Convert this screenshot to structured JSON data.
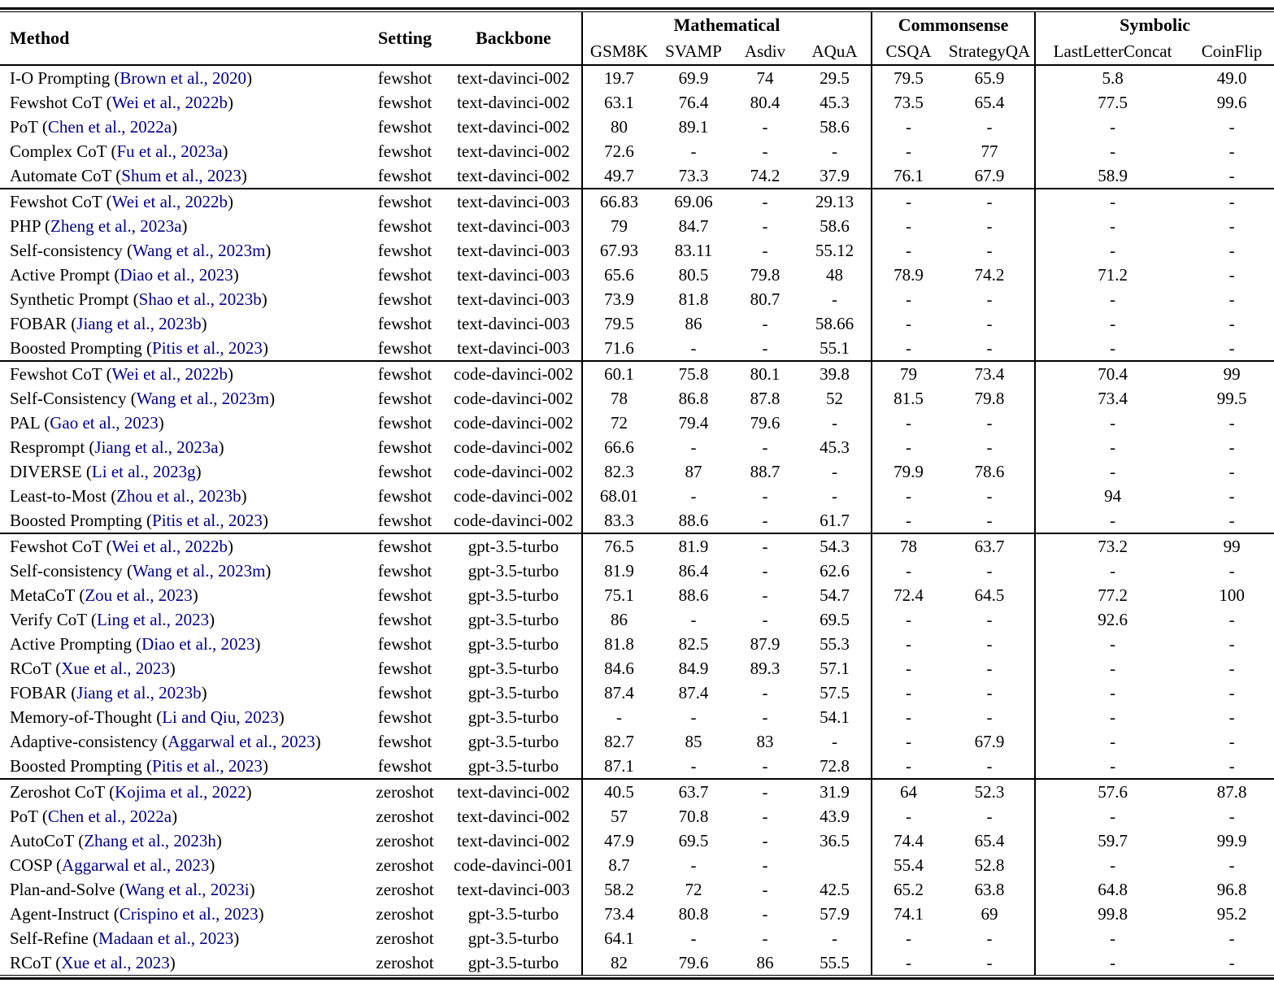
{
  "table": {
    "header": {
      "method": "Method",
      "setting": "Setting",
      "backbone": "Backbone",
      "groups": [
        {
          "label": "Mathematical",
          "columns": [
            "GSM8K",
            "SVAMP",
            "Asdiv",
            "AQuA"
          ]
        },
        {
          "label": "Commonsense",
          "columns": [
            "CSQA",
            "StrategyQA"
          ]
        },
        {
          "label": "Symbolic",
          "columns": [
            "LastLetterConcat",
            "CoinFlip"
          ]
        }
      ]
    },
    "colors": {
      "citation_link": "#00008B",
      "text": "#000000",
      "background": "#ffffff",
      "rules": "#000000"
    },
    "body_groups": [
      {
        "rows": [
          {
            "method": "I-O Prompting",
            "citation": "Brown et al., 2020",
            "setting": "fewshot",
            "backbone": "text-davinci-002",
            "scores": [
              "19.7",
              "69.9",
              "74",
              "29.5",
              "79.5",
              "65.9",
              "5.8",
              "49.0"
            ]
          },
          {
            "method": "Fewshot CoT",
            "citation": "Wei et al., 2022b",
            "setting": "fewshot",
            "backbone": "text-davinci-002",
            "scores": [
              "63.1",
              "76.4",
              "80.4",
              "45.3",
              "73.5",
              "65.4",
              "77.5",
              "99.6"
            ]
          },
          {
            "method": "PoT",
            "citation": "Chen et al., 2022a",
            "setting": "fewshot",
            "backbone": "text-davinci-002",
            "scores": [
              "80",
              "89.1",
              "-",
              "58.6",
              "-",
              "-",
              "-",
              "-"
            ]
          },
          {
            "method": "Complex CoT",
            "citation": "Fu et al., 2023a",
            "setting": "fewshot",
            "backbone": "text-davinci-002",
            "scores": [
              "72.6",
              "-",
              "-",
              "-",
              "-",
              "77",
              "-",
              "-"
            ]
          },
          {
            "method": "Automate CoT",
            "citation": "Shum et al., 2023",
            "setting": "fewshot",
            "backbone": "text-davinci-002",
            "scores": [
              "49.7",
              "73.3",
              "74.2",
              "37.9",
              "76.1",
              "67.9",
              "58.9",
              "-"
            ]
          }
        ]
      },
      {
        "rows": [
          {
            "method": "Fewshot CoT",
            "citation": "Wei et al., 2022b",
            "setting": "fewshot",
            "backbone": "text-davinci-003",
            "scores": [
              "66.83",
              "69.06",
              "-",
              "29.13",
              "-",
              "-",
              "-",
              "-"
            ]
          },
          {
            "method": "PHP",
            "citation": "Zheng et al., 2023a",
            "setting": "fewshot",
            "backbone": "text-davinci-003",
            "scores": [
              "79",
              "84.7",
              "-",
              "58.6",
              "-",
              "-",
              "-",
              "-"
            ]
          },
          {
            "method": "Self-consistency",
            "citation": "Wang et al., 2023m",
            "setting": "fewshot",
            "backbone": "text-davinci-003",
            "scores": [
              "67.93",
              "83.11",
              "-",
              "55.12",
              "-",
              "-",
              "-",
              "-"
            ]
          },
          {
            "method": "Active Prompt",
            "citation": "Diao et al., 2023",
            "setting": "fewshot",
            "backbone": "text-davinci-003",
            "scores": [
              "65.6",
              "80.5",
              "79.8",
              "48",
              "78.9",
              "74.2",
              "71.2",
              "-"
            ]
          },
          {
            "method": "Synthetic Prompt",
            "citation": "Shao et al., 2023b",
            "setting": "fewshot",
            "backbone": "text-davinci-003",
            "scores": [
              "73.9",
              "81.8",
              "80.7",
              "-",
              "-",
              "-",
              "-",
              "-"
            ]
          },
          {
            "method": "FOBAR",
            "citation": "Jiang et al., 2023b",
            "setting": "fewshot",
            "backbone": "text-davinci-003",
            "scores": [
              "79.5",
              "86",
              "-",
              "58.66",
              "-",
              "-",
              "-",
              "-"
            ]
          },
          {
            "method": "Boosted Prompting",
            "citation": "Pitis et al., 2023",
            "setting": "fewshot",
            "backbone": "text-davinci-003",
            "scores": [
              "71.6",
              "-",
              "-",
              "55.1",
              "-",
              "-",
              "-",
              "-"
            ]
          }
        ]
      },
      {
        "rows": [
          {
            "method": "Fewshot CoT",
            "citation": "Wei et al., 2022b",
            "setting": "fewshot",
            "backbone": "code-davinci-002",
            "scores": [
              "60.1",
              "75.8",
              "80.1",
              "39.8",
              "79",
              "73.4",
              "70.4",
              "99"
            ]
          },
          {
            "method": "Self-Consistency",
            "citation": "Wang et al., 2023m",
            "setting": "fewshot",
            "backbone": "code-davinci-002",
            "scores": [
              "78",
              "86.8",
              "87.8",
              "52",
              "81.5",
              "79.8",
              "73.4",
              "99.5"
            ]
          },
          {
            "method": "PAL",
            "citation": "Gao et al., 2023",
            "setting": "fewshot",
            "backbone": "code-davinci-002",
            "scores": [
              "72",
              "79.4",
              "79.6",
              "-",
              "-",
              "-",
              "-",
              "-"
            ]
          },
          {
            "method": "Resprompt",
            "citation": "Jiang et al., 2023a",
            "setting": "fewshot",
            "backbone": "code-davinci-002",
            "scores": [
              "66.6",
              "-",
              "-",
              "45.3",
              "-",
              "-",
              "-",
              "-"
            ]
          },
          {
            "method": "DIVERSE",
            "citation": "Li et al., 2023g",
            "setting": "fewshot",
            "backbone": "code-davinci-002",
            "scores": [
              "82.3",
              "87",
              "88.7",
              "-",
              "79.9",
              "78.6",
              "-",
              "-"
            ]
          },
          {
            "method": "Least-to-Most",
            "citation": "Zhou et al., 2023b",
            "setting": "fewshot",
            "backbone": "code-davinci-002",
            "scores": [
              "68.01",
              "-",
              "-",
              "-",
              "-",
              "-",
              "94",
              "-"
            ]
          },
          {
            "method": "Boosted Prompting",
            "citation": "Pitis et al., 2023",
            "setting": "fewshot",
            "backbone": "code-davinci-002",
            "scores": [
              "83.3",
              "88.6",
              "-",
              "61.7",
              "-",
              "-",
              "-",
              "-"
            ]
          }
        ]
      },
      {
        "rows": [
          {
            "method": "Fewshot CoT",
            "citation": "Wei et al., 2022b",
            "setting": "fewshot",
            "backbone": "gpt-3.5-turbo",
            "scores": [
              "76.5",
              "81.9",
              "-",
              "54.3",
              "78",
              "63.7",
              "73.2",
              "99"
            ]
          },
          {
            "method": "Self-consistency",
            "citation": "Wang et al., 2023m",
            "setting": "fewshot",
            "backbone": "gpt-3.5-turbo",
            "scores": [
              "81.9",
              "86.4",
              "-",
              "62.6",
              "-",
              "-",
              "-",
              "-"
            ]
          },
          {
            "method": "MetaCoT",
            "citation": "Zou et al., 2023",
            "setting": "fewshot",
            "backbone": "gpt-3.5-turbo",
            "scores": [
              "75.1",
              "88.6",
              "-",
              "54.7",
              "72.4",
              "64.5",
              "77.2",
              "100"
            ]
          },
          {
            "method": "Verify CoT",
            "citation": "Ling et al., 2023",
            "setting": "fewshot",
            "backbone": "gpt-3.5-turbo",
            "scores": [
              "86",
              "-",
              "-",
              "69.5",
              "-",
              "-",
              "92.6",
              "-"
            ]
          },
          {
            "method": "Active Prompting",
            "citation": "Diao et al., 2023",
            "setting": "fewshot",
            "backbone": "gpt-3.5-turbo",
            "scores": [
              "81.8",
              "82.5",
              "87.9",
              "55.3",
              "-",
              "-",
              "-",
              "-"
            ]
          },
          {
            "method": "RCoT",
            "citation": "Xue et al., 2023",
            "setting": "fewshot",
            "backbone": "gpt-3.5-turbo",
            "scores": [
              "84.6",
              "84.9",
              "89.3",
              "57.1",
              "-",
              "-",
              "-",
              "-"
            ]
          },
          {
            "method": "FOBAR",
            "citation": "Jiang et al., 2023b",
            "setting": "fewshot",
            "backbone": "gpt-3.5-turbo",
            "scores": [
              "87.4",
              "87.4",
              "-",
              "57.5",
              "-",
              "-",
              "-",
              "-"
            ]
          },
          {
            "method": "Memory-of-Thought",
            "citation": "Li and Qiu, 2023",
            "setting": "fewshot",
            "backbone": "gpt-3.5-turbo",
            "scores": [
              "-",
              "-",
              "-",
              "54.1",
              "-",
              "-",
              "-",
              "-"
            ]
          },
          {
            "method": "Adaptive-consistency",
            "citation": "Aggarwal et al., 2023",
            "setting": "fewshot",
            "backbone": "gpt-3.5-turbo",
            "scores": [
              "82.7",
              "85",
              "83",
              "-",
              "-",
              "67.9",
              "-",
              "-"
            ]
          },
          {
            "method": "Boosted Prompting",
            "citation": "Pitis et al., 2023",
            "setting": "fewshot",
            "backbone": "gpt-3.5-turbo",
            "scores": [
              "87.1",
              "-",
              "-",
              "72.8",
              "-",
              "-",
              "-",
              "-"
            ]
          }
        ]
      },
      {
        "rows": [
          {
            "method": "Zeroshot CoT",
            "citation": "Kojima et al., 2022",
            "setting": "zeroshot",
            "backbone": "text-davinci-002",
            "scores": [
              "40.5",
              "63.7",
              "-",
              "31.9",
              "64",
              "52.3",
              "57.6",
              "87.8"
            ]
          },
          {
            "method": "PoT",
            "citation": "Chen et al., 2022a",
            "setting": "zeroshot",
            "backbone": "text-davinci-002",
            "scores": [
              "57",
              "70.8",
              "-",
              "43.9",
              "-",
              "-",
              "-",
              "-"
            ]
          },
          {
            "method": "AutoCoT",
            "citation": "Zhang et al., 2023h",
            "setting": "zeroshot",
            "backbone": "text-davinci-002",
            "scores": [
              "47.9",
              "69.5",
              "-",
              "36.5",
              "74.4",
              "65.4",
              "59.7",
              "99.9"
            ]
          },
          {
            "method": "COSP",
            "citation": "Aggarwal et al., 2023",
            "setting": "zeroshot",
            "backbone": "code-davinci-001",
            "scores": [
              "8.7",
              "-",
              "-",
              "",
              "55.4",
              "52.8",
              "-",
              "-"
            ]
          },
          {
            "method": "Plan-and-Solve",
            "citation": "Wang et al., 2023i",
            "setting": "zeroshot",
            "backbone": "text-davinci-003",
            "scores": [
              "58.2",
              "72",
              "-",
              "42.5",
              "65.2",
              "63.8",
              "64.8",
              "96.8"
            ]
          },
          {
            "method": "Agent-Instruct",
            "citation": "Crispino et al., 2023",
            "setting": "zeroshot",
            "backbone": "gpt-3.5-turbo",
            "scores": [
              "73.4",
              "80.8",
              "-",
              "57.9",
              "74.1",
              "69",
              "99.8",
              "95.2"
            ]
          },
          {
            "method": "Self-Refine",
            "citation": "Madaan et al., 2023",
            "setting": "zeroshot",
            "backbone": "gpt-3.5-turbo",
            "scores": [
              "64.1",
              "-",
              "-",
              "-",
              "-",
              "-",
              "-",
              "-"
            ]
          },
          {
            "method": "RCoT",
            "citation": "Xue et al., 2023",
            "setting": "zeroshot",
            "backbone": "gpt-3.5-turbo",
            "scores": [
              "82",
              "79.6",
              "86",
              "55.5",
              "-",
              "-",
              "-",
              "-"
            ]
          }
        ]
      }
    ]
  }
}
